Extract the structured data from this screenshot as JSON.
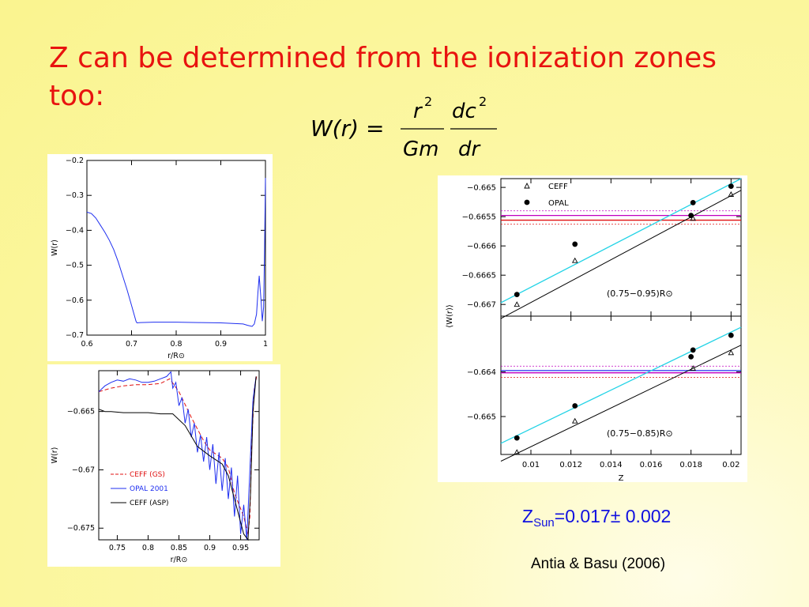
{
  "slide": {
    "title": "Z can be determined from the ionization zones too:",
    "formula": {
      "lhs": "W(r) =",
      "num1": "r",
      "num1_exp": "2",
      "den1": "Gm",
      "num2": "dc",
      "num2_exp": "2",
      "den2": "dr"
    },
    "result": {
      "base": "Z",
      "sub": "Sun",
      "value": "=0.017± 0.002"
    },
    "citation": "Antia & Basu (2006)"
  },
  "colors": {
    "title": "#e8130f",
    "result": "#1010e0",
    "cyan": "#22d3e6",
    "blue": "#1f2ff0",
    "red": "#e01010",
    "purple": "#c000c0",
    "black": "#000000"
  },
  "chart_data": [
    {
      "type": "line",
      "xlabel": "r/R⊙",
      "ylabel": "W(r)",
      "xlim": [
        0.6,
        1.0
      ],
      "ylim": [
        -0.7,
        -0.2
      ],
      "xticks": [
        0.6,
        0.7,
        0.8,
        0.9,
        1
      ],
      "xtick_labels": [
        "0.6",
        "0.7",
        "0.8",
        "0.9",
        "1"
      ],
      "yticks": [
        -0.2,
        -0.3,
        -0.4,
        -0.5,
        -0.6,
        -0.7
      ],
      "ytick_labels": [
        "−0.2",
        "−0.3",
        "−0.4",
        "−0.5",
        "−0.6",
        "−0.7"
      ],
      "series": [
        {
          "color": "#1f2ff0",
          "x": [
            0.6,
            0.61,
            0.62,
            0.63,
            0.64,
            0.65,
            0.66,
            0.67,
            0.68,
            0.69,
            0.7,
            0.71,
            0.712,
            0.72,
            0.75,
            0.8,
            0.85,
            0.9,
            0.95,
            0.96,
            0.97,
            0.975,
            0.98,
            0.983,
            0.986,
            0.99,
            0.993,
            0.996,
            0.998,
            1.0
          ],
          "y": [
            -0.348,
            -0.352,
            -0.365,
            -0.385,
            -0.405,
            -0.428,
            -0.455,
            -0.49,
            -0.53,
            -0.57,
            -0.615,
            -0.66,
            -0.665,
            -0.664,
            -0.663,
            -0.663,
            -0.664,
            -0.665,
            -0.668,
            -0.672,
            -0.675,
            -0.668,
            -0.64,
            -0.58,
            -0.53,
            -0.6,
            -0.66,
            -0.62,
            -0.45,
            -0.25
          ]
        }
      ]
    },
    {
      "type": "line",
      "xlabel": "r/R⊙",
      "ylabel": "W(r)",
      "xlim": [
        0.72,
        0.98
      ],
      "ylim": [
        -0.676,
        -0.6615
      ],
      "xticks": [
        0.75,
        0.8,
        0.85,
        0.9,
        0.95
      ],
      "xtick_labels": [
        "0.75",
        "0.8",
        "0.85",
        "0.9",
        "0.95"
      ],
      "yticks": [
        -0.665,
        -0.67,
        -0.675
      ],
      "ytick_labels": [
        "−0.665",
        "−0.67",
        "−0.675"
      ],
      "legend": [
        {
          "label": "CEFF (GS)",
          "color": "#e01010",
          "dash": true
        },
        {
          "label": "OPAL 2001",
          "color": "#1f2ff0",
          "dash": false
        },
        {
          "label": "CEFF (ASP)",
          "color": "#000000",
          "dash": false
        }
      ],
      "series": [
        {
          "name": "CEFF (GS)",
          "color": "#e01010",
          "dash": true,
          "x": [
            0.72,
            0.74,
            0.76,
            0.78,
            0.8,
            0.82,
            0.835,
            0.85,
            0.87,
            0.89,
            0.9,
            0.92,
            0.93,
            0.94,
            0.955,
            0.962,
            0.965,
            0.968,
            0.972,
            0.976
          ],
          "y": [
            -0.6633,
            -0.663,
            -0.6628,
            -0.6627,
            -0.6627,
            -0.6626,
            -0.6622,
            -0.6633,
            -0.6655,
            -0.6675,
            -0.6683,
            -0.669,
            -0.6698,
            -0.672,
            -0.674,
            -0.6755,
            -0.674,
            -0.668,
            -0.663,
            -0.662
          ]
        },
        {
          "name": "OPAL 2001",
          "color": "#1f2ff0",
          "dash": false,
          "x": [
            0.72,
            0.73,
            0.74,
            0.75,
            0.76,
            0.77,
            0.78,
            0.79,
            0.8,
            0.81,
            0.82,
            0.83,
            0.837,
            0.84,
            0.845,
            0.85,
            0.855,
            0.86,
            0.865,
            0.87,
            0.875,
            0.88,
            0.885,
            0.89,
            0.895,
            0.9,
            0.905,
            0.91,
            0.915,
            0.92,
            0.925,
            0.93,
            0.935,
            0.94,
            0.945,
            0.95,
            0.955,
            0.96,
            0.965,
            0.97,
            0.975
          ],
          "y": [
            -0.6633,
            -0.6628,
            -0.6625,
            -0.6623,
            -0.6624,
            -0.6622,
            -0.6623,
            -0.6625,
            -0.6625,
            -0.6624,
            -0.6622,
            -0.662,
            -0.6616,
            -0.663,
            -0.6625,
            -0.6645,
            -0.6638,
            -0.666,
            -0.6648,
            -0.6672,
            -0.666,
            -0.6685,
            -0.667,
            -0.6693,
            -0.6672,
            -0.67,
            -0.6678,
            -0.6712,
            -0.6685,
            -0.6718,
            -0.669,
            -0.6725,
            -0.6698,
            -0.674,
            -0.6705,
            -0.6755,
            -0.673,
            -0.676,
            -0.67,
            -0.664,
            -0.662
          ]
        },
        {
          "name": "CEFF (ASP)",
          "color": "#000000",
          "dash": false,
          "x": [
            0.72,
            0.73,
            0.74,
            0.76,
            0.78,
            0.8,
            0.82,
            0.84,
            0.86,
            0.88,
            0.9,
            0.92,
            0.93,
            0.94,
            0.95,
            0.955,
            0.962,
            0.966,
            0.97,
            0.975
          ],
          "y": [
            -0.6648,
            -0.665,
            -0.665,
            -0.6651,
            -0.6651,
            -0.6651,
            -0.6652,
            -0.6652,
            -0.6662,
            -0.668,
            -0.6688,
            -0.6695,
            -0.6705,
            -0.6725,
            -0.6745,
            -0.6755,
            -0.676,
            -0.672,
            -0.665,
            -0.662
          ]
        }
      ]
    },
    {
      "type": "scatter",
      "xlabel": "Z",
      "ylabel": "⟨W(r)⟩",
      "xlim": [
        0.0085,
        0.0205
      ],
      "xticks": [
        0.01,
        0.012,
        0.014,
        0.016,
        0.018,
        0.02
      ],
      "xtick_labels": [
        "0.01",
        "0.012",
        "0.014",
        "0.016",
        "0.018",
        "0.02"
      ],
      "legend": [
        {
          "label": "CEFF",
          "marker": "triangle"
        },
        {
          "label": "OPAL",
          "marker": "circle"
        }
      ],
      "panels": [
        {
          "annotation": "(0.75−0.95)R⊙",
          "ylim": [
            -0.6672,
            -0.66485
          ],
          "yticks": [
            -0.665,
            -0.6655,
            -0.666,
            -0.6665,
            -0.667
          ],
          "ytick_labels": [
            "−0.665",
            "−0.6655",
            "−0.666",
            "−0.6665",
            "−0.667"
          ],
          "ceff": {
            "x": [
              0.0093,
              0.0122,
              0.0181,
              0.02
            ],
            "y": [
              -0.667,
              -0.66625,
              -0.66553,
              -0.66512
            ]
          },
          "opal": {
            "x": [
              0.0093,
              0.0122,
              0.018,
              0.0181,
              0.02
            ],
            "y": [
              -0.66683,
              -0.66597,
              -0.66548,
              -0.66526,
              -0.66498
            ]
          },
          "ceff_fit": {
            "x": [
              0.0085,
              0.0205
            ],
            "y": [
              -0.66724,
              -0.66505
            ]
          },
          "opal_fit": {
            "x": [
              0.0085,
              0.0205
            ],
            "y": [
              -0.66697,
              -0.66485
            ]
          },
          "hlines": [
            {
              "y": -0.66548,
              "color": "#c000c0",
              "dash": false
            },
            {
              "y": -0.66556,
              "color": "#e01010",
              "dash": false
            },
            {
              "y": -0.6654,
              "color": "#c000c0",
              "dash": true
            },
            {
              "y": -0.66563,
              "color": "#e01010",
              "dash": true
            }
          ]
        },
        {
          "annotation": "(0.75−0.85)R⊙",
          "ylim": [
            -0.66585,
            -0.66275
          ],
          "yticks": [
            -0.664,
            -0.665
          ],
          "ytick_labels": [
            "−0.664",
            "−0.665"
          ],
          "ceff": {
            "x": [
              0.0093,
              0.0122,
              0.0181,
              0.02
            ],
            "y": [
              -0.6658,
              -0.6651,
              -0.66392,
              -0.66357
            ]
          },
          "opal": {
            "x": [
              0.0093,
              0.0122,
              0.018,
              0.0181,
              0.02
            ],
            "y": [
              -0.66548,
              -0.66476,
              -0.66366,
              -0.66351,
              -0.66318
            ]
          },
          "ceff_fit": {
            "x": [
              0.0085,
              0.0205
            ],
            "y": [
              -0.666,
              -0.6634
            ]
          },
          "opal_fit": {
            "x": [
              0.0085,
              0.0205
            ],
            "y": [
              -0.6656,
              -0.663
            ]
          },
          "hlines": [
            {
              "y": -0.66397,
              "color": "#1f2ff0",
              "dash": false
            },
            {
              "y": -0.66402,
              "color": "#c000c0",
              "dash": false
            },
            {
              "y": -0.66387,
              "color": "#c000c0",
              "dash": true
            },
            {
              "y": -0.66412,
              "color": "#e01010",
              "dash": true
            }
          ]
        }
      ]
    }
  ]
}
